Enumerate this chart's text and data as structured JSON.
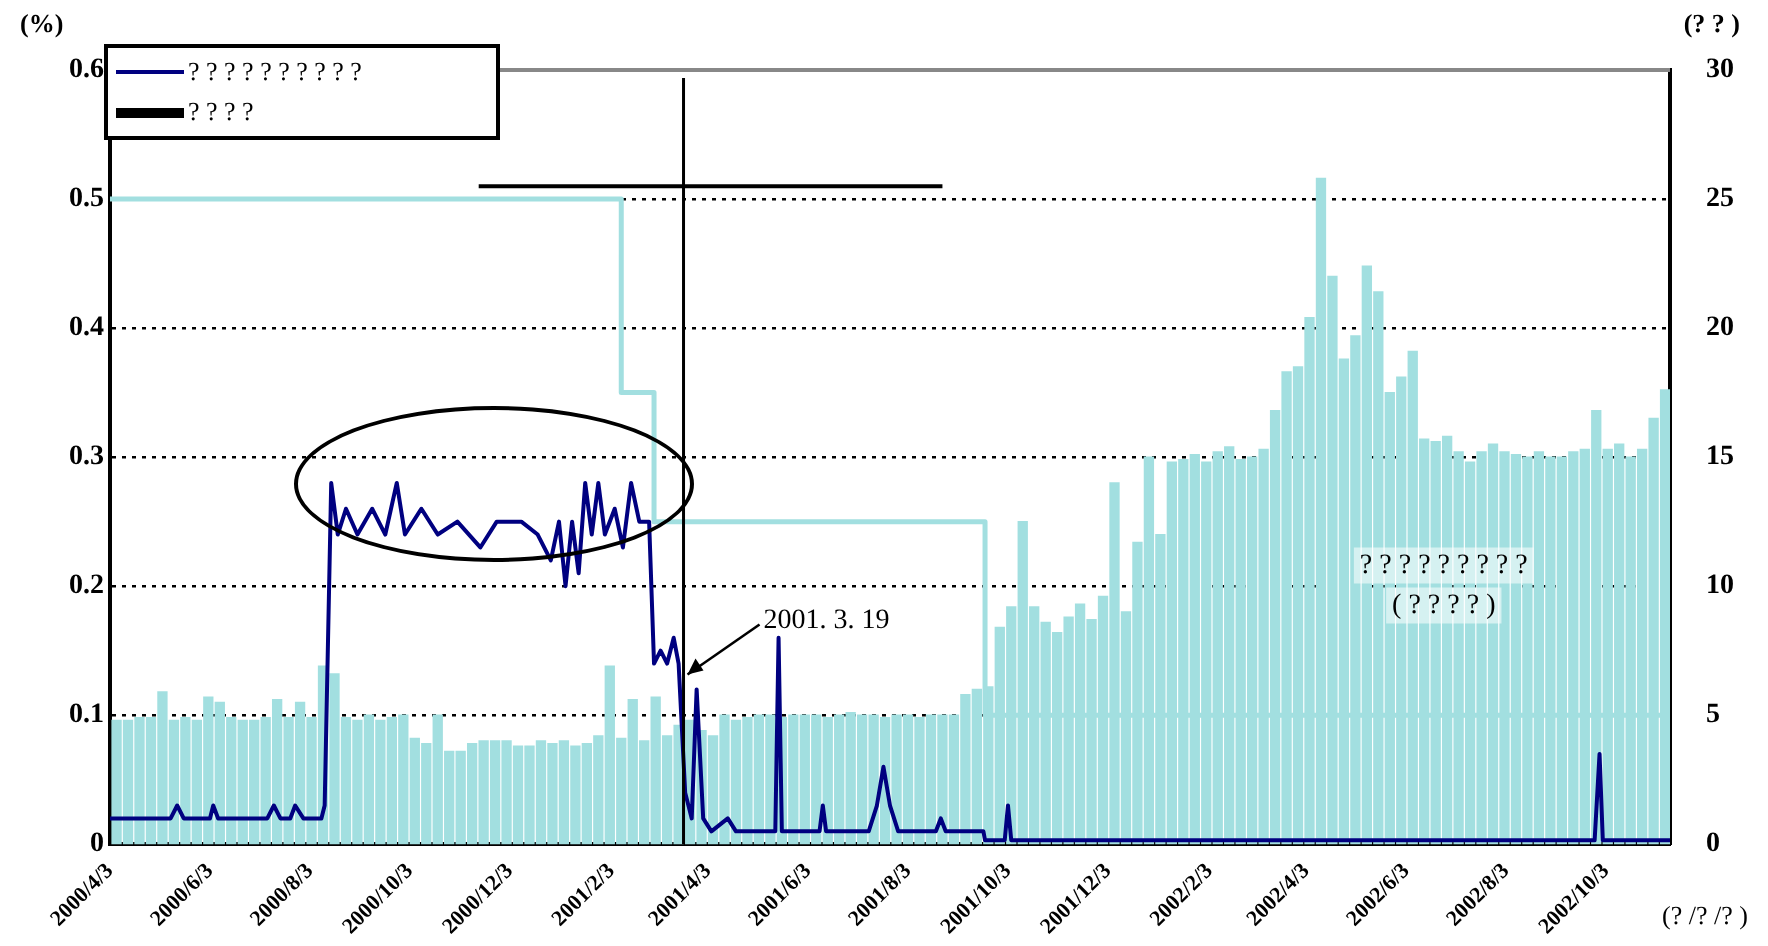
{
  "chart_data": {
    "type": "bar",
    "xlabel": "(? /? /? )",
    "ylabel": "(%)",
    "y2label": "(? ? )",
    "grid": "y",
    "legend": "top left",
    "xlim": [
      "2000-04-03",
      "2002-11-11"
    ],
    "xticks": [
      {
        "value": "2000-04-03",
        "label": "2000/4/3"
      },
      {
        "value": "2000-06-03",
        "label": "2000/6/3"
      },
      {
        "value": "2000-08-03",
        "label": "2000/8/3"
      },
      {
        "value": "2000-10-03",
        "label": "2000/10/3"
      },
      {
        "value": "2000-12-03",
        "label": "2000/12/3"
      },
      {
        "value": "2001-02-03",
        "label": "2001/2/3"
      },
      {
        "value": "2001-04-03",
        "label": "2001/4/3"
      },
      {
        "value": "2001-06-03",
        "label": "2001/6/3"
      },
      {
        "value": "2001-08-03",
        "label": "2001/8/3"
      },
      {
        "value": "2001-10-03",
        "label": "2001/10/3"
      },
      {
        "value": "2001-12-03",
        "label": "2001/12/3"
      },
      {
        "value": "2002-02-03",
        "label": "2002/2/3"
      },
      {
        "value": "2002-04-03",
        "label": "2002/4/3"
      },
      {
        "value": "2002-06-03",
        "label": "2002/6/3"
      },
      {
        "value": "2002-08-03",
        "label": "2002/8/3"
      },
      {
        "value": "2002-10-03",
        "label": "2002/10/3"
      }
    ],
    "ylim": [
      0,
      0.6
    ],
    "yticks": [
      0,
      0.1,
      0.2,
      0.3,
      0.4,
      0.5,
      0.6
    ],
    "y2lim": [
      0,
      30
    ],
    "y2ticks": [
      0,
      5,
      10,
      15,
      20,
      25,
      30
    ],
    "series": [
      {
        "axis": "y2",
        "color": "#a2dfe0",
        "x": [
          "2000-04-07",
          "2000-04-14",
          "2000-04-21",
          "2000-04-28",
          "2000-05-05",
          "2000-05-12",
          "2000-05-19",
          "2000-05-26",
          "2000-06-02",
          "2000-06-09",
          "2000-06-16",
          "2000-06-23",
          "2000-06-30",
          "2000-07-07",
          "2000-07-14",
          "2000-07-21",
          "2000-07-28",
          "2000-08-04",
          "2000-08-11",
          "2000-08-18",
          "2000-08-25",
          "2000-09-01",
          "2000-09-08",
          "2000-09-15",
          "2000-09-22",
          "2000-09-29",
          "2000-10-06",
          "2000-10-13",
          "2000-10-20",
          "2000-10-27",
          "2000-11-03",
          "2000-11-10",
          "2000-11-17",
          "2000-11-24",
          "2000-12-01",
          "2000-12-08",
          "2000-12-15",
          "2000-12-22",
          "2000-12-29",
          "2001-01-05",
          "2001-01-12",
          "2001-01-19",
          "2001-01-26",
          "2001-02-02",
          "2001-02-09",
          "2001-02-16",
          "2001-02-23",
          "2001-03-02",
          "2001-03-09",
          "2001-03-16",
          "2001-03-23",
          "2001-03-30",
          "2001-04-06",
          "2001-04-13",
          "2001-04-20",
          "2001-04-27",
          "2001-05-04",
          "2001-05-11",
          "2001-05-18",
          "2001-05-25",
          "2001-06-01",
          "2001-06-08",
          "2001-06-15",
          "2001-06-22",
          "2001-06-29",
          "2001-07-06",
          "2001-07-13",
          "2001-07-20",
          "2001-07-27",
          "2001-08-03",
          "2001-08-10",
          "2001-08-17",
          "2001-08-24",
          "2001-08-31",
          "2001-09-07",
          "2001-09-14",
          "2001-09-21",
          "2001-09-28",
          "2001-10-05",
          "2001-10-12",
          "2001-10-19",
          "2001-10-26",
          "2001-11-02",
          "2001-11-09",
          "2001-11-16",
          "2001-11-23",
          "2001-11-30",
          "2001-12-07",
          "2001-12-14",
          "2001-12-21",
          "2001-12-28",
          "2002-01-04",
          "2002-01-11",
          "2002-01-18",
          "2002-01-25",
          "2002-02-01",
          "2002-02-08",
          "2002-02-15",
          "2002-02-22",
          "2002-03-01",
          "2002-03-08",
          "2002-03-15",
          "2002-03-22",
          "2002-03-29",
          "2002-04-05",
          "2002-04-12",
          "2002-04-19",
          "2002-04-26",
          "2002-05-03",
          "2002-05-10",
          "2002-05-17",
          "2002-05-24",
          "2002-05-31",
          "2002-06-07",
          "2002-06-14",
          "2002-06-21",
          "2002-06-28",
          "2002-07-05",
          "2002-07-12",
          "2002-07-19",
          "2002-07-26",
          "2002-08-02",
          "2002-08-09",
          "2002-08-16",
          "2002-08-23",
          "2002-08-30",
          "2002-09-06",
          "2002-09-13",
          "2002-09-20",
          "2002-09-27",
          "2002-10-04",
          "2002-10-11",
          "2002-10-18",
          "2002-10-25",
          "2002-11-01",
          "2002-11-08"
        ],
        "values": [
          4.8,
          4.8,
          4.9,
          4.9,
          5.9,
          4.8,
          4.9,
          4.8,
          5.7,
          5.5,
          4.9,
          4.8,
          4.8,
          4.9,
          5.6,
          4.9,
          5.5,
          4.9,
          6.9,
          6.6,
          4.9,
          4.8,
          5.0,
          4.8,
          4.9,
          5.0,
          4.1,
          3.9,
          5.0,
          3.6,
          3.6,
          3.9,
          4.0,
          4.0,
          4.0,
          3.8,
          3.8,
          4.0,
          3.9,
          4.0,
          3.8,
          3.9,
          4.2,
          6.9,
          4.1,
          5.6,
          4.0,
          5.7,
          4.2,
          4.6,
          4.8,
          4.4,
          4.2,
          5.0,
          4.8,
          4.9,
          5.0,
          5.0,
          4.9,
          5.0,
          5.0,
          5.0,
          4.9,
          5.0,
          5.1,
          5.0,
          5.0,
          4.9,
          5.0,
          5.0,
          4.9,
          5.0,
          5.0,
          5.0,
          5.8,
          6.0,
          6.1,
          8.4,
          9.2,
          12.5,
          9.2,
          8.6,
          8.2,
          8.8,
          9.3,
          8.7,
          9.6,
          14.0,
          9.0,
          11.7,
          15.0,
          12.0,
          14.8,
          14.9,
          15.1,
          14.8,
          15.2,
          15.4,
          14.9,
          15.0,
          15.3,
          16.8,
          18.3,
          18.5,
          20.4,
          25.8,
          22.0,
          18.8,
          19.7,
          22.4,
          21.4,
          17.5,
          18.1,
          19.1,
          15.7,
          15.6,
          15.8,
          15.2,
          14.8,
          15.2,
          15.5,
          15.2,
          15.1,
          15.0,
          15.2,
          15.0,
          15.0,
          15.2,
          15.3,
          16.8,
          15.3,
          15.5,
          15.0,
          15.3,
          16.5,
          17.6
        ]
      },
      {
        "type": "step",
        "color": "#a2dfe0",
        "x": [
          "2000-04-03",
          "2001-02-09",
          "2001-03-01",
          "2001-09-19",
          "2002-11-11"
        ],
        "values": [
          0.5,
          0.35,
          0.25,
          0.1,
          0.1
        ]
      },
      {
        "type": "line",
        "name": "? ? ? ? ? ? ? ? ? ?",
        "color": "#000080",
        "x": [
          "2000-04-03",
          "2000-05-10",
          "2000-05-14",
          "2000-05-18",
          "2000-06-03",
          "2000-06-05",
          "2000-06-08",
          "2000-07-08",
          "2000-07-12",
          "2000-07-16",
          "2000-07-22",
          "2000-07-25",
          "2000-07-30",
          "2000-08-10",
          "2000-08-12",
          "2000-08-16",
          "2000-08-20",
          "2000-08-25",
          "2000-09-01",
          "2000-09-10",
          "2000-09-18",
          "2000-09-25",
          "2000-09-30",
          "2000-10-10",
          "2000-10-20",
          "2000-11-01",
          "2000-11-15",
          "2000-11-25",
          "2000-12-10",
          "2000-12-20",
          "2000-12-28",
          "2001-01-02",
          "2001-01-06",
          "2001-01-10",
          "2001-01-14",
          "2001-01-18",
          "2001-01-22",
          "2001-01-26",
          "2001-01-30",
          "2001-02-05",
          "2001-02-10",
          "2001-02-15",
          "2001-02-20",
          "2001-02-26",
          "2001-03-01",
          "2001-03-05",
          "2001-03-09",
          "2001-03-13",
          "2001-03-16",
          "2001-03-20",
          "2001-03-24",
          "2001-03-27",
          "2001-03-31",
          "2001-04-05",
          "2001-04-15",
          "2001-04-20",
          "2001-05-14",
          "2001-05-16",
          "2001-05-18",
          "2001-06-10",
          "2001-06-12",
          "2001-06-14",
          "2001-07-10",
          "2001-07-15",
          "2001-07-19",
          "2001-07-23",
          "2001-07-28",
          "2001-08-20",
          "2001-08-23",
          "2001-08-26",
          "2001-09-18",
          "2001-09-19",
          "2001-10-01",
          "2001-10-03",
          "2001-10-05",
          "2002-09-26",
          "2002-09-29",
          "2002-10-01",
          "2002-11-11"
        ],
        "values": [
          0.02,
          0.02,
          0.03,
          0.02,
          0.02,
          0.03,
          0.02,
          0.02,
          0.03,
          0.02,
          0.02,
          0.03,
          0.02,
          0.02,
          0.03,
          0.28,
          0.24,
          0.26,
          0.24,
          0.26,
          0.24,
          0.28,
          0.24,
          0.26,
          0.24,
          0.25,
          0.23,
          0.25,
          0.25,
          0.24,
          0.22,
          0.25,
          0.2,
          0.25,
          0.21,
          0.28,
          0.24,
          0.28,
          0.24,
          0.26,
          0.23,
          0.28,
          0.25,
          0.25,
          0.14,
          0.15,
          0.14,
          0.16,
          0.14,
          0.04,
          0.02,
          0.12,
          0.02,
          0.01,
          0.02,
          0.01,
          0.01,
          0.16,
          0.01,
          0.01,
          0.03,
          0.01,
          0.01,
          0.03,
          0.06,
          0.03,
          0.01,
          0.01,
          0.02,
          0.01,
          0.01,
          0.003,
          0.003,
          0.03,
          0.003,
          0.003,
          0.07,
          0.003,
          0.003
        ]
      },
      {
        "type": "line",
        "name": "? ? ? ?",
        "color": "#000000",
        "x": [
          "2000-11-14",
          "2001-08-24"
        ],
        "values": [
          0.51,
          0.51
        ]
      }
    ],
    "ref_lines": [
      {
        "axis": "x",
        "value": "2001-03-19",
        "color": "#000000"
      }
    ],
    "annotations": [
      {
        "text": "2001. 3. 19",
        "x": "2001-03-19",
        "y": 0.13
      },
      "? ? ? ? ? ? ? ? ?",
      "( ? ? ? ? )"
    ]
  }
}
